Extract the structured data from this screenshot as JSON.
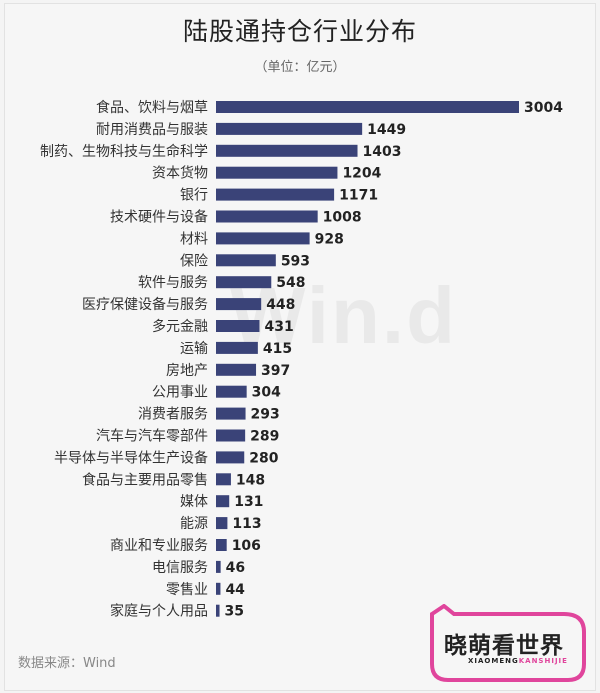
{
  "title": "陆股通持仓行业分布",
  "subtitle": "（单位：亿元）",
  "watermark": "Win.d",
  "source": "数据来源：Wind",
  "logo": {
    "main": "晓萌看世界",
    "sub_part1": "XIAOMENG",
    "sub_part2": "KANSHIJIE"
  },
  "colors": {
    "bar": "#3a4378",
    "logo_accent": "#e0459c"
  },
  "chart_data": {
    "type": "bar",
    "orientation": "horizontal",
    "categories": [
      "食品、饮料与烟草",
      "耐用消费品与服装",
      "制药、生物科技与生命科学",
      "资本货物",
      "银行",
      "技术硬件与设备",
      "材料",
      "保险",
      "软件与服务",
      "医疗保健设备与服务",
      "多元金融",
      "运输",
      "房地产",
      "公用事业",
      "消费者服务",
      "汽车与汽车零部件",
      "半导体与半导体生产设备",
      "食品与主要用品零售",
      "媒体",
      "能源",
      "商业和专业服务",
      "电信服务",
      "零售业",
      "家庭与个人用品"
    ],
    "values": [
      3004,
      1449,
      1403,
      1204,
      1171,
      1008,
      928,
      593,
      548,
      448,
      431,
      415,
      397,
      304,
      293,
      289,
      280,
      148,
      131,
      113,
      106,
      46,
      44,
      35
    ],
    "unit": "亿元"
  }
}
